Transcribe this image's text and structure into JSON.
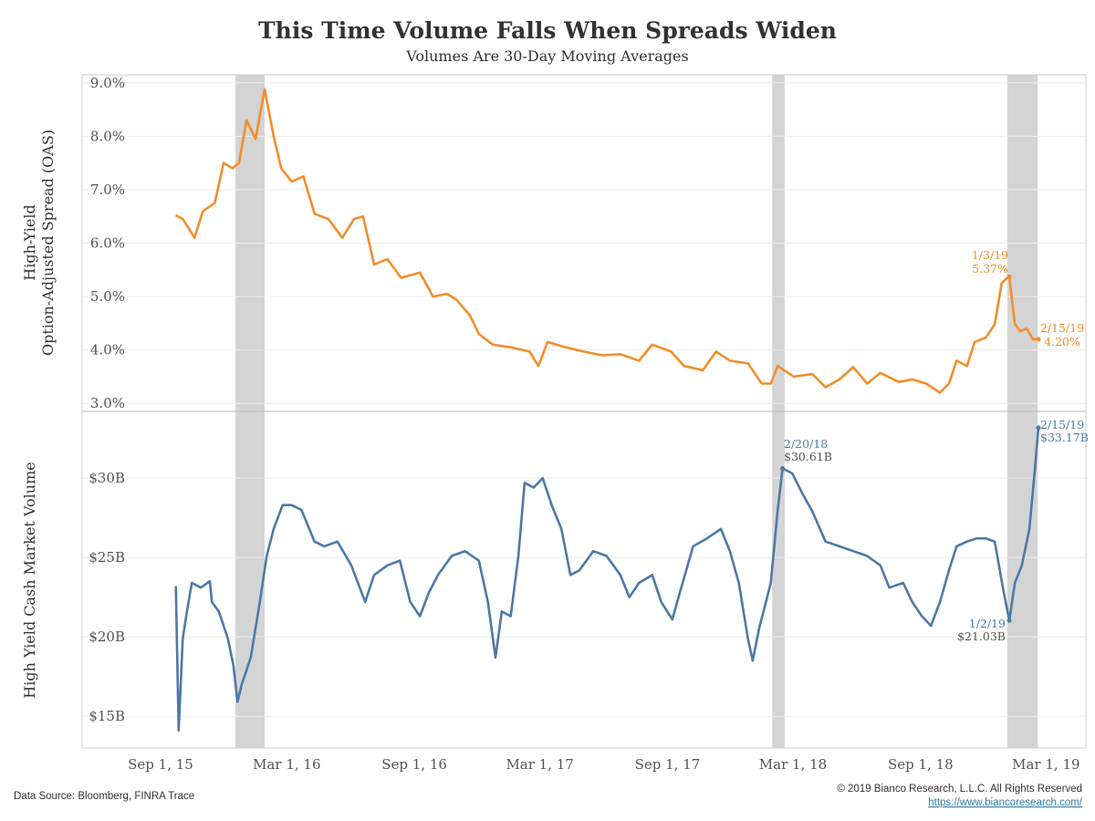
{
  "chart_data": [
    {
      "type": "line",
      "title": "This Time Volume Falls When Spreads Widen",
      "subtitle": "Volumes Are 30-Day Moving Averages",
      "x_unit": "days since Sep 1, 2015",
      "x_ticks": [
        {
          "label": "Sep 1, 15",
          "day": 0
        },
        {
          "label": "Mar 1, 16",
          "day": 182
        },
        {
          "label": "Sep 1, 16",
          "day": 366
        },
        {
          "label": "Mar 1, 17",
          "day": 547
        },
        {
          "label": "Sep 1, 17",
          "day": 731
        },
        {
          "label": "Mar 1, 18",
          "day": 912
        },
        {
          "label": "Sep 1, 18",
          "day": 1096
        },
        {
          "label": "Mar 1, 19",
          "day": 1277
        }
      ],
      "shaded_periods": [
        [
          108,
          150
        ],
        [
          882,
          900
        ],
        [
          1221,
          1265
        ]
      ],
      "ylabel_line1": "High-Yield",
      "ylabel_line2": "Option-Adjusted Spread (OAS)",
      "ylim": [
        2.85,
        9.15
      ],
      "y_ticks": [
        {
          "label": "3.0%",
          "value": 3
        },
        {
          "label": "4.0%",
          "value": 4
        },
        {
          "label": "5.0%",
          "value": 5
        },
        {
          "label": "6.0%",
          "value": 6
        },
        {
          "label": "7.0%",
          "value": 7
        },
        {
          "label": "8.0%",
          "value": 8
        },
        {
          "label": "9.0%",
          "value": 9
        }
      ],
      "series": [
        {
          "name": "High-Yield OAS",
          "color": "#f28e2b",
          "points": [
            [
              22,
              6.52
            ],
            [
              32,
              6.45
            ],
            [
              49,
              6.1
            ],
            [
              61,
              6.6
            ],
            [
              78,
              6.75
            ],
            [
              91,
              7.5
            ],
            [
              104,
              7.4
            ],
            [
              113,
              7.5
            ],
            [
              124,
              8.3
            ],
            [
              137,
              7.95
            ],
            [
              150,
              8.88
            ],
            [
              163,
              8.0
            ],
            [
              174,
              7.4
            ],
            [
              189,
              7.15
            ],
            [
              206,
              7.25
            ],
            [
              222,
              6.55
            ],
            [
              242,
              6.45
            ],
            [
              262,
              6.1
            ],
            [
              279,
              6.45
            ],
            [
              292,
              6.5
            ],
            [
              308,
              5.6
            ],
            [
              327,
              5.7
            ],
            [
              347,
              5.35
            ],
            [
              374,
              5.45
            ],
            [
              393,
              5.0
            ],
            [
              413,
              5.05
            ],
            [
              426,
              4.95
            ],
            [
              446,
              4.65
            ],
            [
              459,
              4.3
            ],
            [
              479,
              4.1
            ],
            [
              505,
              4.05
            ],
            [
              532,
              3.97
            ],
            [
              545,
              3.7
            ],
            [
              558,
              4.15
            ],
            [
              584,
              4.05
            ],
            [
              610,
              3.97
            ],
            [
              637,
              3.9
            ],
            [
              663,
              3.92
            ],
            [
              690,
              3.8
            ],
            [
              709,
              4.1
            ],
            [
              736,
              3.97
            ],
            [
              755,
              3.7
            ],
            [
              782,
              3.62
            ],
            [
              801,
              3.97
            ],
            [
              821,
              3.8
            ],
            [
              847,
              3.75
            ],
            [
              867,
              3.37
            ],
            [
              880,
              3.37
            ],
            [
              890,
              3.7
            ],
            [
              913,
              3.5
            ],
            [
              940,
              3.55
            ],
            [
              959,
              3.3
            ],
            [
              979,
              3.45
            ],
            [
              999,
              3.68
            ],
            [
              1019,
              3.37
            ],
            [
              1038,
              3.57
            ],
            [
              1065,
              3.4
            ],
            [
              1084,
              3.45
            ],
            [
              1104,
              3.37
            ],
            [
              1124,
              3.2
            ],
            [
              1137,
              3.37
            ],
            [
              1148,
              3.8
            ],
            [
              1163,
              3.7
            ],
            [
              1174,
              4.15
            ],
            [
              1190,
              4.23
            ],
            [
              1203,
              4.48
            ],
            [
              1213,
              5.25
            ],
            [
              1221,
              5.35
            ],
            [
              1224,
              5.37
            ],
            [
              1232,
              4.48
            ],
            [
              1240,
              4.35
            ],
            [
              1249,
              4.4
            ],
            [
              1258,
              4.2
            ],
            [
              1266,
              4.2
            ]
          ]
        }
      ],
      "annotations": [
        {
          "date": "1/3/19",
          "value_label": "5.37%",
          "day": 1224,
          "value": 5.37
        },
        {
          "date": "2/15/19",
          "value_label": "4.20%",
          "day": 1266,
          "value": 4.2
        }
      ]
    },
    {
      "type": "line",
      "ylabel": "High Yield Cash Market Volume",
      "ylim": [
        13,
        34.2
      ],
      "y_ticks": [
        {
          "label": "$15B",
          "value": 15
        },
        {
          "label": "$20B",
          "value": 20
        },
        {
          "label": "$25B",
          "value": 25
        },
        {
          "label": "$30B",
          "value": 30
        }
      ],
      "series": [
        {
          "name": "High Yield Cash Market Volume ($B)",
          "color": "#4e79a7",
          "points": [
            [
              22,
              23.2
            ],
            [
              26,
              14.1
            ],
            [
              32,
              19.9
            ],
            [
              38,
              21.6
            ],
            [
              45,
              23.4
            ],
            [
              58,
              23.1
            ],
            [
              71,
              23.5
            ],
            [
              74,
              22.2
            ],
            [
              84,
              21.6
            ],
            [
              97,
              19.9
            ],
            [
              105,
              18.2
            ],
            [
              111,
              15.9
            ],
            [
              117,
              17.0
            ],
            [
              130,
              18.7
            ],
            [
              143,
              22.2
            ],
            [
              153,
              25.1
            ],
            [
              163,
              26.8
            ],
            [
              176,
              28.3
            ],
            [
              189,
              28.3
            ],
            [
              203,
              28.0
            ],
            [
              222,
              26.0
            ],
            [
              236,
              25.7
            ],
            [
              255,
              26.0
            ],
            [
              275,
              24.5
            ],
            [
              295,
              22.2
            ],
            [
              308,
              23.9
            ],
            [
              327,
              24.5
            ],
            [
              345,
              24.8
            ],
            [
              360,
              22.2
            ],
            [
              374,
              21.3
            ],
            [
              387,
              22.8
            ],
            [
              400,
              23.9
            ],
            [
              420,
              25.1
            ],
            [
              439,
              25.4
            ],
            [
              459,
              24.8
            ],
            [
              472,
              22.2
            ],
            [
              483,
              18.7
            ],
            [
              492,
              21.6
            ],
            [
              505,
              21.3
            ],
            [
              516,
              25.1
            ],
            [
              525,
              29.7
            ],
            [
              538,
              29.4
            ],
            [
              551,
              30.0
            ],
            [
              564,
              28.3
            ],
            [
              578,
              26.8
            ],
            [
              591,
              23.9
            ],
            [
              604,
              24.2
            ],
            [
              624,
              25.4
            ],
            [
              643,
              25.1
            ],
            [
              663,
              23.9
            ],
            [
              676,
              22.5
            ],
            [
              690,
              23.4
            ],
            [
              709,
              23.9
            ],
            [
              722,
              22.2
            ],
            [
              738,
              21.1
            ],
            [
              749,
              22.8
            ],
            [
              768,
              25.7
            ],
            [
              788,
              26.2
            ],
            [
              808,
              26.8
            ],
            [
              821,
              25.4
            ],
            [
              834,
              23.4
            ],
            [
              847,
              19.9
            ],
            [
              854,
              18.5
            ],
            [
              863,
              20.5
            ],
            [
              880,
              23.4
            ],
            [
              890,
              28.0
            ],
            [
              897,
              30.61
            ],
            [
              911,
              30.3
            ],
            [
              926,
              29.0
            ],
            [
              940,
              27.9
            ],
            [
              959,
              26.0
            ],
            [
              979,
              25.7
            ],
            [
              999,
              25.4
            ],
            [
              1019,
              25.1
            ],
            [
              1038,
              24.5
            ],
            [
              1051,
              23.1
            ],
            [
              1071,
              23.4
            ],
            [
              1084,
              22.2
            ],
            [
              1098,
              21.3
            ],
            [
              1111,
              20.7
            ],
            [
              1124,
              22.2
            ],
            [
              1137,
              24.2
            ],
            [
              1148,
              25.7
            ],
            [
              1163,
              26.0
            ],
            [
              1177,
              26.2
            ],
            [
              1190,
              26.2
            ],
            [
              1203,
              26.0
            ],
            [
              1216,
              22.8
            ],
            [
              1224,
              21.03
            ],
            [
              1232,
              23.4
            ],
            [
              1242,
              24.5
            ],
            [
              1253,
              26.8
            ],
            [
              1261,
              30.6
            ],
            [
              1266,
              33.17
            ]
          ]
        }
      ],
      "annotations": [
        {
          "date": "2/20/18",
          "value_label": "$30.61B",
          "day": 897,
          "value": 30.61
        },
        {
          "date": "2/15/19",
          "value_label": "$33.17B",
          "day": 1266,
          "value": 33.17
        },
        {
          "date": "1/2/19",
          "value_label": "$21.03B",
          "day": 1224,
          "value": 21.03
        }
      ]
    }
  ],
  "footer": {
    "source": "Data Source: Bloomberg, FINRA Trace",
    "copyright": "© 2019 Bianco Research, L.L.C. All Rights Reserved",
    "url": "https://www.biancoresearch.com/"
  }
}
